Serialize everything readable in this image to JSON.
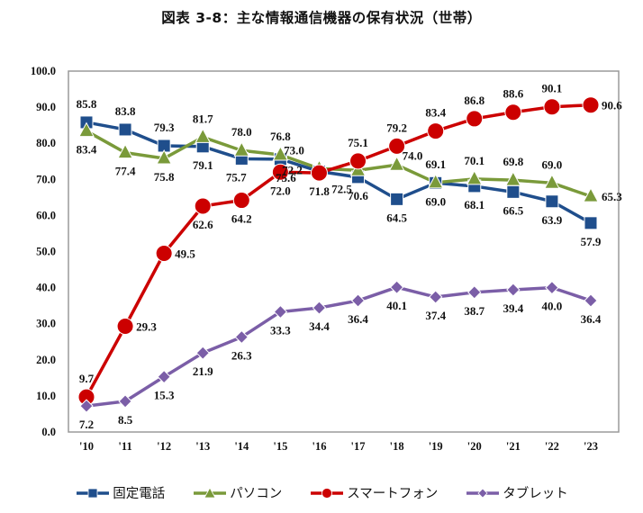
{
  "chart_data": {
    "type": "line",
    "title": "図表 3-8：主な情報通信機器の保有状況（世帯）",
    "xlabel": "",
    "ylabel": "",
    "x": [
      "'10",
      "'11",
      "'12",
      "'13",
      "'14",
      "'15",
      "'16",
      "'17",
      "'18",
      "'19",
      "'20",
      "'21",
      "'22",
      "'23"
    ],
    "ylim": [
      0,
      100
    ],
    "yticks": [
      "0.0",
      "10.0",
      "20.0",
      "30.0",
      "40.0",
      "50.0",
      "60.0",
      "70.0",
      "80.0",
      "90.0",
      "100.0"
    ],
    "grid": false,
    "legend_position": "bottom",
    "series": [
      {
        "name": "固定電話",
        "color": "#1f4e8c",
        "marker": "square",
        "values": [
          85.8,
          83.8,
          79.3,
          79.1,
          75.7,
          75.6,
          72.2,
          70.6,
          64.5,
          69.0,
          68.1,
          66.5,
          63.9,
          57.9
        ]
      },
      {
        "name": "パソコン",
        "color": "#7a9a3a",
        "marker": "triangle",
        "values": [
          83.4,
          77.4,
          75.8,
          81.7,
          78.0,
          76.8,
          73.0,
          72.5,
          74.0,
          69.1,
          70.1,
          69.8,
          69.0,
          65.3
        ]
      },
      {
        "name": "スマートフォン",
        "color": "#cc0000",
        "marker": "circle",
        "values": [
          9.7,
          29.3,
          49.5,
          62.6,
          64.2,
          72.0,
          71.8,
          75.1,
          79.2,
          83.4,
          86.8,
          88.6,
          90.1,
          90.6
        ]
      },
      {
        "name": "タブレット",
        "color": "#7b5ea7",
        "marker": "diamond",
        "values": [
          7.2,
          8.5,
          15.3,
          21.9,
          26.3,
          33.3,
          34.4,
          36.4,
          40.1,
          37.4,
          38.7,
          39.4,
          40.0,
          36.4
        ]
      }
    ]
  }
}
